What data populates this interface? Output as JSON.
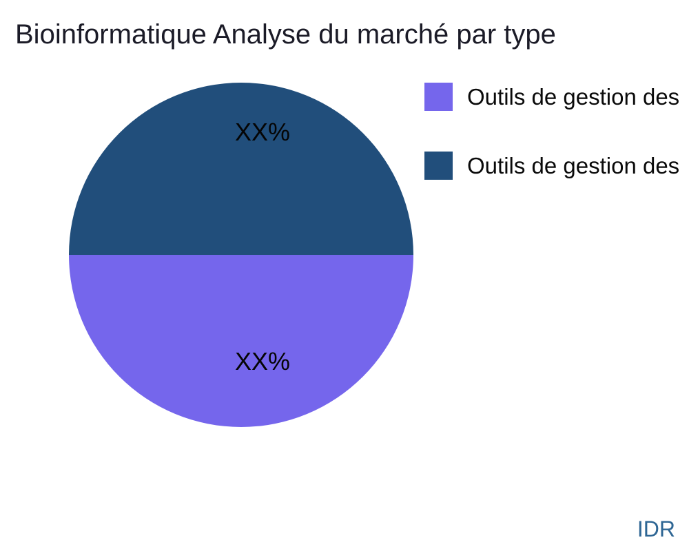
{
  "chart_data": {
    "type": "pie",
    "title": "Bioinformatique Analyse du marché par type",
    "start_angle_deg": 90,
    "direction": "clockwise",
    "legend_position": "top-right",
    "labels_inside": true,
    "slices": [
      {
        "label": "Outils de gestion des",
        "display_value": "XX%",
        "value": 50,
        "color": "#7566EC",
        "position": "bottom-half"
      },
      {
        "label": "Outils de gestion des",
        "display_value": "XX%",
        "value": 50,
        "color": "#214E7B",
        "position": "top-half"
      }
    ]
  },
  "watermark": {
    "text": "IDR",
    "color": "#2E6694"
  },
  "colors": {
    "background": "#FFFFFF",
    "title_text": "#1B1B27",
    "slice_label_text": "#050505",
    "legend_text": "#0A0A0A"
  }
}
